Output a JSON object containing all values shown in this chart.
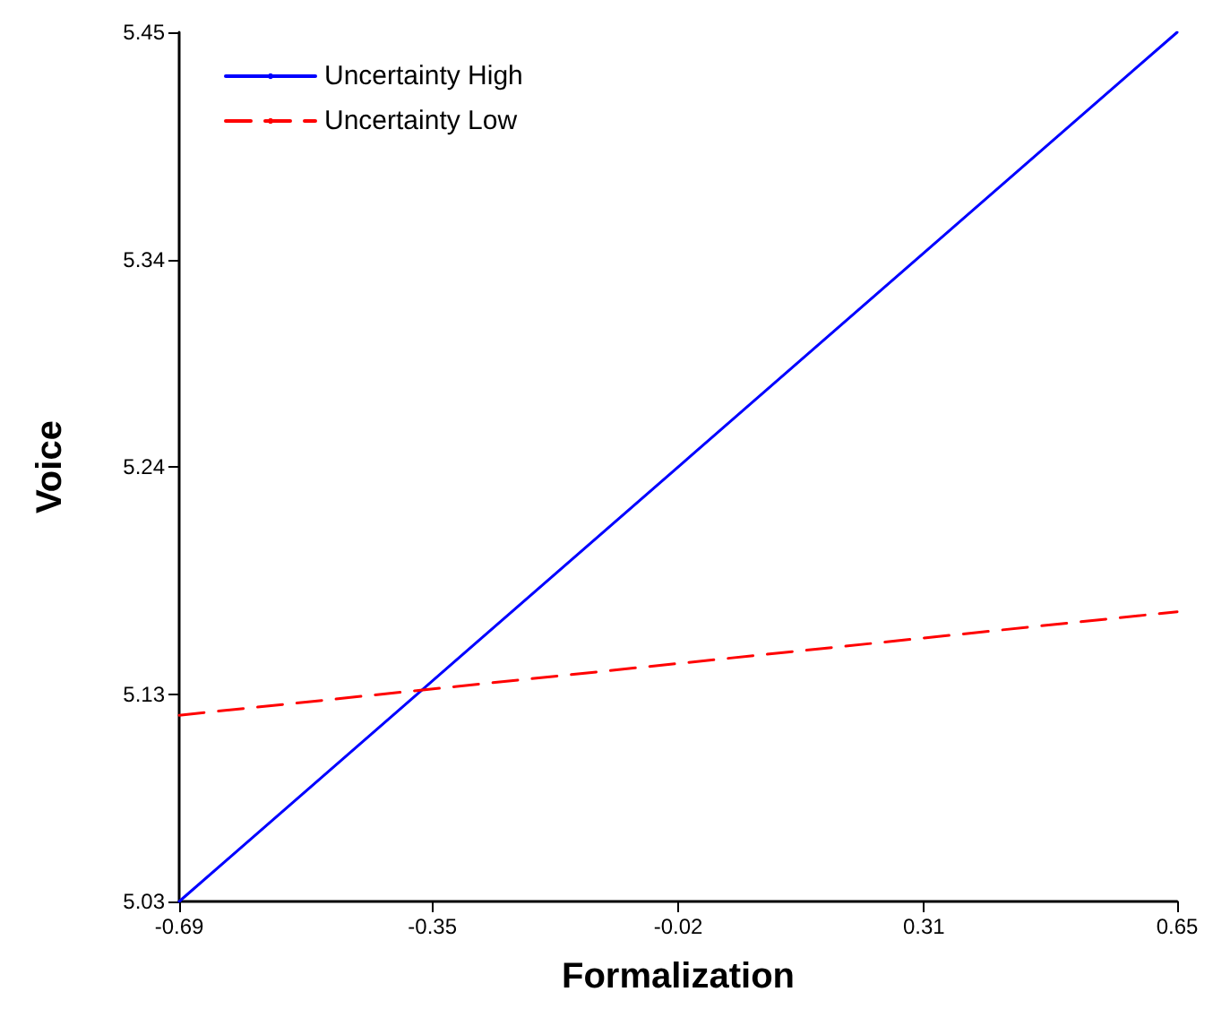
{
  "chart_data": {
    "type": "line",
    "xlabel": "Formalization",
    "ylabel": "Voice",
    "x": [
      -0.69,
      0.65
    ],
    "series": [
      {
        "name": "Uncertainty High",
        "color": "#0000ff",
        "values": [
          5.03,
          5.45
        ],
        "line_style": "solid"
      },
      {
        "name": "Uncertainty Low",
        "color": "#ff0000",
        "values": [
          5.12,
          5.17
        ],
        "line_style": "dashed"
      }
    ],
    "xlim": [
      -0.69,
      0.65
    ],
    "xticks": [
      -0.69,
      -0.35,
      -0.02,
      0.31,
      0.65
    ],
    "ylim": [
      5.03,
      5.45
    ],
    "yticks": [
      5.03,
      5.13,
      5.24,
      5.34,
      5.45
    ],
    "grid": false,
    "legend": "top left",
    "marker": "none"
  }
}
